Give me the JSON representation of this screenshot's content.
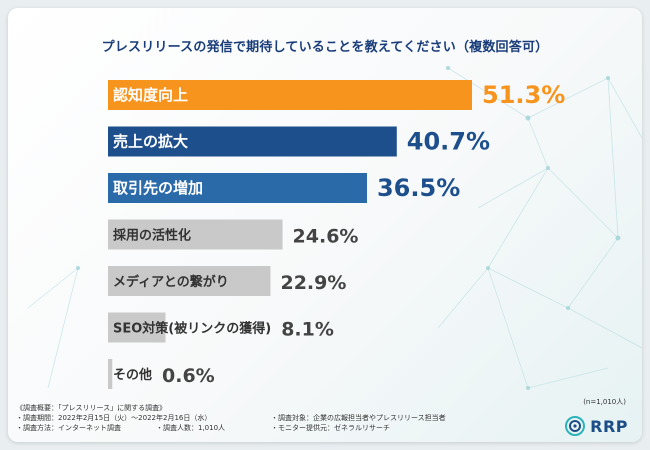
{
  "chart_data": {
    "type": "bar",
    "orientation": "horizontal",
    "title": "プレスリリースの発信で期待していることを教えてください（複数回答可）",
    "categories": [
      "認知度向上",
      "売上の拡大",
      "取引先の増加",
      "採用の活性化",
      "メディアとの繋がり",
      "SEO対策(被リンクの獲得)",
      "その他"
    ],
    "values": [
      51.3,
      40.7,
      36.5,
      24.6,
      22.9,
      8.1,
      0.6
    ],
    "value_labels": [
      "51.3%",
      "40.7%",
      "36.5%",
      "24.6%",
      "22.9%",
      "8.1%",
      "0.6%"
    ],
    "colors": [
      "#f7941d",
      "#1d4f8c",
      "#2a6aa8",
      "#c9c9c9",
      "#c9c9c9",
      "#c9c9c9",
      "#c9c9c9"
    ],
    "value_colors": [
      "#f7941d",
      "#1d4f8c",
      "#1d4f8c",
      "#444444",
      "#444444",
      "#444444",
      "#444444"
    ],
    "label_colors": [
      "#ffffff",
      "#ffffff",
      "#ffffff",
      "#333333",
      "#333333",
      "#333333",
      "#333333"
    ],
    "xlim": [
      0,
      51.3
    ],
    "grid": false,
    "legend": "none"
  },
  "note": "(n=1,010人)",
  "footnotes": {
    "heading": "《調査概要：「プレスリリース」に関する調査》",
    "period": "・調査期間：2022年2月15日（火）〜2022年2月16日（水）",
    "target": "・調査対象：企業の広報担当者やプレスリリース担当者",
    "method": "・調査方法：インターネット調査",
    "people": "・調査人数：1,010人",
    "provider": "・モニター提供元：ゼネラルリサーチ"
  },
  "logo": {
    "text": "RRP",
    "color": "#1b4e86"
  }
}
